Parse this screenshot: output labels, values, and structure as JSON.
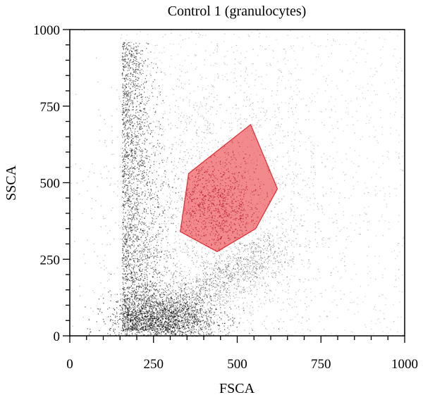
{
  "chart_data": {
    "type": "scatter",
    "title": "Control 1 (granulocytes)",
    "xlabel": "FSCA",
    "ylabel": "SSCA",
    "xlim": [
      0,
      1000
    ],
    "ylim": [
      0,
      1000
    ],
    "x_ticks": [
      {
        "value": 0,
        "label": "0"
      },
      {
        "value": 250,
        "label": "250"
      },
      {
        "value": 500,
        "label": "500"
      },
      {
        "value": 750,
        "label": "750"
      },
      {
        "value": 1000,
        "label": "1000"
      }
    ],
    "y_ticks": [
      {
        "value": 0,
        "label": "0"
      },
      {
        "value": 250,
        "label": "250"
      },
      {
        "value": 500,
        "label": "500"
      },
      {
        "value": 750,
        "label": "750"
      },
      {
        "value": 1000,
        "label": "1000"
      }
    ],
    "grid": false,
    "point_color": "#000000",
    "gate": {
      "color": "#e8282d",
      "fill_opacity": 0.55,
      "vertices": [
        [
          355,
          530
        ],
        [
          540,
          690
        ],
        [
          620,
          480
        ],
        [
          555,
          350
        ],
        [
          440,
          275
        ],
        [
          330,
          340
        ]
      ]
    },
    "density_regions": [
      {
        "name": "left-column",
        "x_center": 175,
        "y_center": 500,
        "x_spread": 15,
        "y_spread": 280
      },
      {
        "name": "lower-cluster",
        "x_center": 280,
        "y_center": 60,
        "x_spread": 80,
        "y_spread": 40
      },
      {
        "name": "diffuse-cloud",
        "x_center": 420,
        "y_center": 400,
        "x_spread": 180,
        "y_spread": 260
      }
    ]
  }
}
